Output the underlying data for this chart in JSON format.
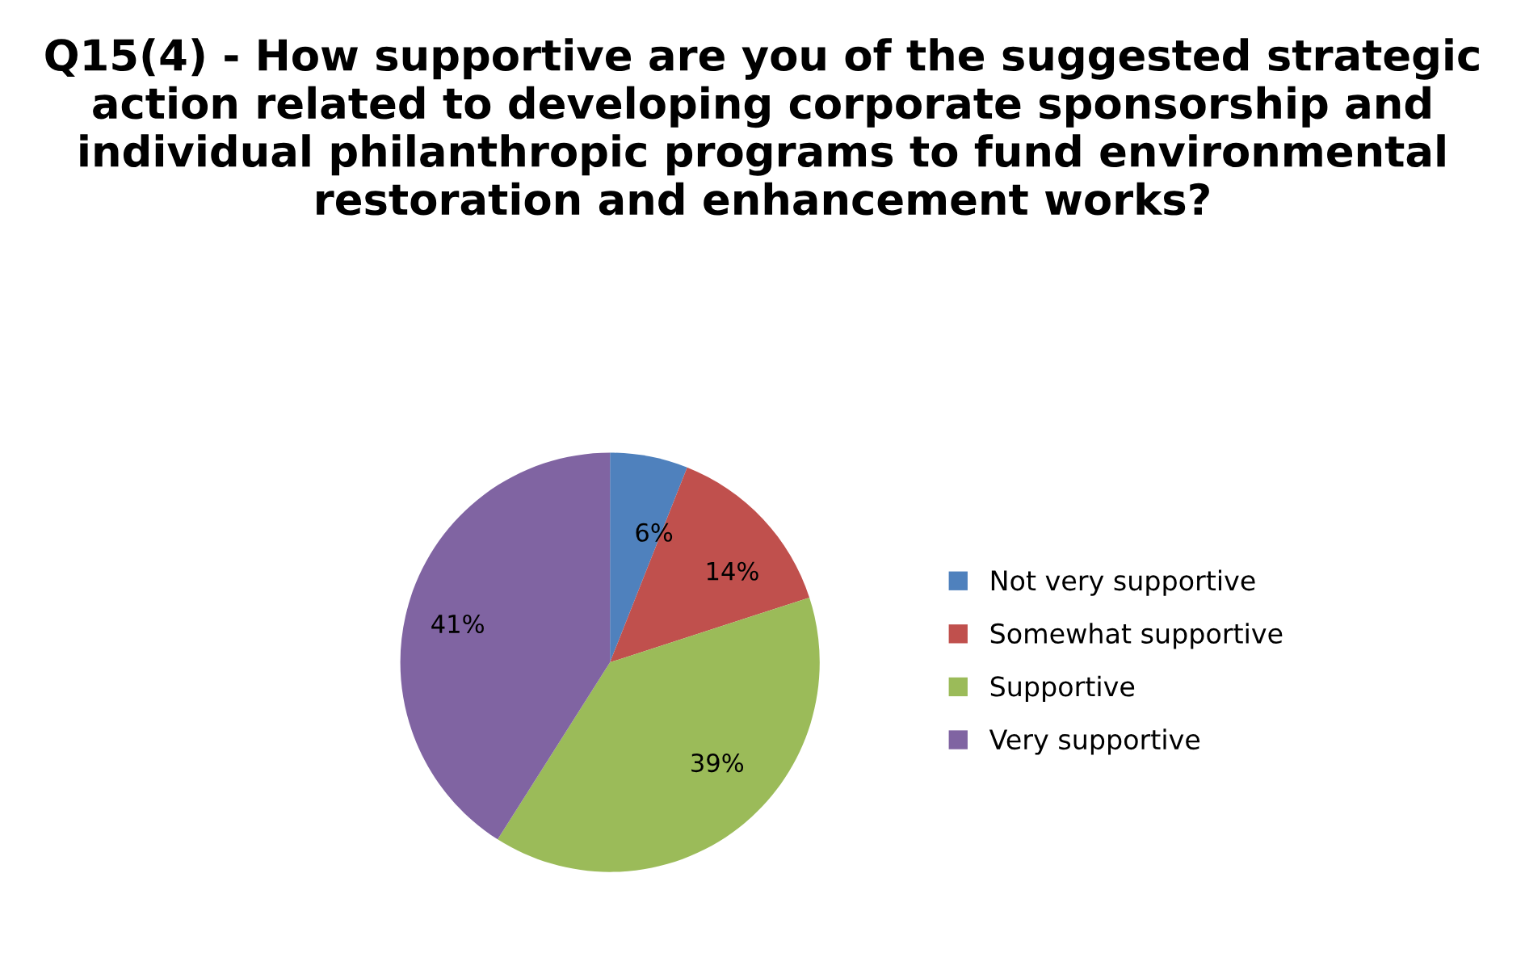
{
  "chart_data": {
    "type": "pie",
    "title": "Q15(4) - How supportive are you of the suggested strategic action related to developing corporate sponsorship and individual philanthropic programs to fund environmental restoration and enhancement works?",
    "categories": [
      "Not very supportive",
      "Somewhat supportive",
      "Supportive",
      "Very supportive"
    ],
    "values": [
      6,
      14,
      39,
      41
    ],
    "colors": [
      "#4f81bd",
      "#c0504d",
      "#9bbb59",
      "#8064a2"
    ],
    "value_labels": [
      "6%",
      "14%",
      "39%",
      "41%"
    ],
    "legend": "right"
  }
}
